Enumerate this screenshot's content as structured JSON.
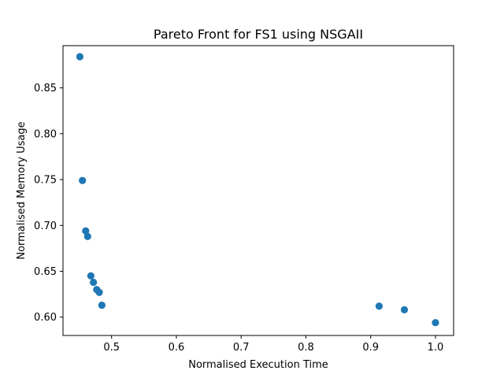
{
  "chart_data": {
    "type": "scatter",
    "title": "Pareto Front for FS1 using NSGAII",
    "xlabel": "Normalised Execution Time",
    "ylabel": "Normalised Memory Usage",
    "xlim": [
      0.425,
      1.028
    ],
    "ylim": [
      0.58,
      0.896
    ],
    "xticks": [
      0.5,
      0.6,
      0.7,
      0.8,
      0.9,
      1.0
    ],
    "xtick_labels": [
      "0.5",
      "0.6",
      "0.7",
      "0.8",
      "0.9",
      "1.0"
    ],
    "yticks": [
      0.6,
      0.65,
      0.7,
      0.75,
      0.8,
      0.85
    ],
    "ytick_labels": [
      "0.60",
      "0.65",
      "0.70",
      "0.75",
      "0.80",
      "0.85"
    ],
    "grid": false,
    "marker_color": "#1f77b4",
    "points": [
      {
        "x": 0.451,
        "y": 0.884
      },
      {
        "x": 0.455,
        "y": 0.749
      },
      {
        "x": 0.46,
        "y": 0.694
      },
      {
        "x": 0.463,
        "y": 0.688
      },
      {
        "x": 0.468,
        "y": 0.645
      },
      {
        "x": 0.472,
        "y": 0.638
      },
      {
        "x": 0.477,
        "y": 0.63
      },
      {
        "x": 0.481,
        "y": 0.627
      },
      {
        "x": 0.485,
        "y": 0.613
      },
      {
        "x": 0.913,
        "y": 0.612
      },
      {
        "x": 0.952,
        "y": 0.608
      },
      {
        "x": 1.0,
        "y": 0.594
      }
    ]
  }
}
